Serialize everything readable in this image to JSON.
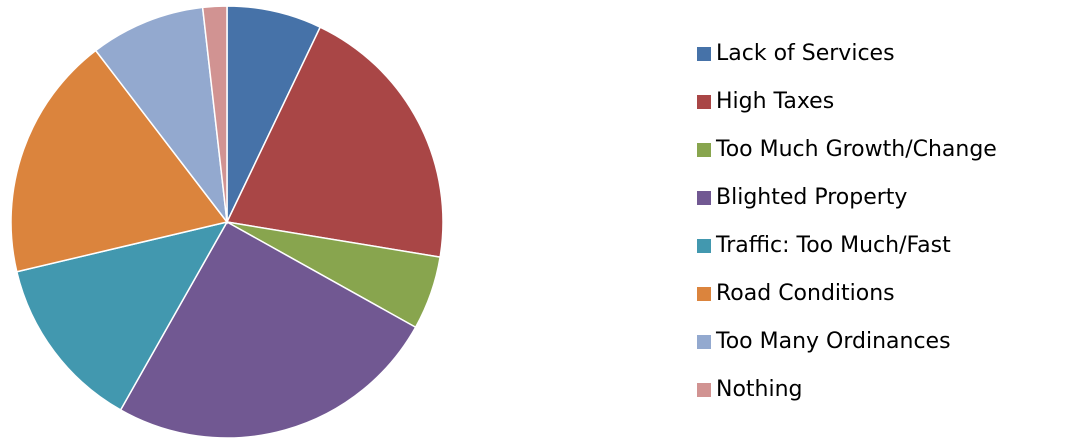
{
  "chart_data": {
    "type": "pie",
    "categories": [
      "Lack of Services",
      "High Taxes",
      "Too Much Growth/Change",
      "Blighted Property",
      "Traffic: Too Much/Fast",
      "Road Conditions",
      "Too Many Ordinances",
      "Nothing"
    ],
    "values": [
      7.1,
      20.5,
      5.5,
      25.1,
      13.1,
      18.3,
      8.6,
      1.8
    ],
    "colors": [
      "#4672a8",
      "#a94646",
      "#88a54e",
      "#715892",
      "#4298af",
      "#db843d",
      "#93a9cf",
      "#d19392"
    ],
    "legend": "right"
  }
}
